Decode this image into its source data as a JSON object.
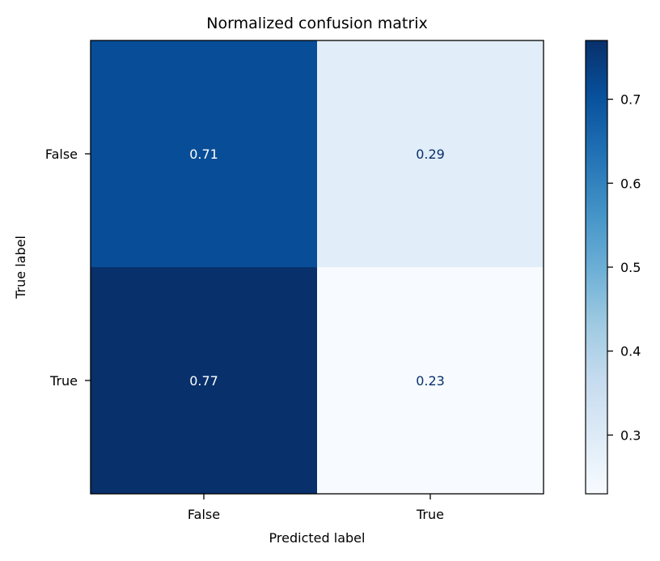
{
  "chart_data": {
    "type": "heatmap",
    "title": "Normalized confusion matrix",
    "xlabel": "Predicted label",
    "ylabel": "True label",
    "x_categories": [
      "False",
      "True"
    ],
    "y_categories": [
      "False",
      "True"
    ],
    "values": [
      [
        0.71,
        0.29
      ],
      [
        0.77,
        0.23
      ]
    ],
    "cell_labels": [
      [
        "0.71",
        "0.29"
      ],
      [
        "0.77",
        "0.23"
      ]
    ],
    "colormap": "Blues",
    "colorbar": {
      "range": [
        0.23,
        0.77
      ],
      "ticks": [
        0.3,
        0.4,
        0.5,
        0.6,
        0.7
      ],
      "tick_labels": [
        "0.3",
        "0.4",
        "0.5",
        "0.6",
        "0.7"
      ]
    },
    "text_colors": {
      "light": "#ffffff",
      "dark": "#08306b"
    },
    "grid": false
  }
}
